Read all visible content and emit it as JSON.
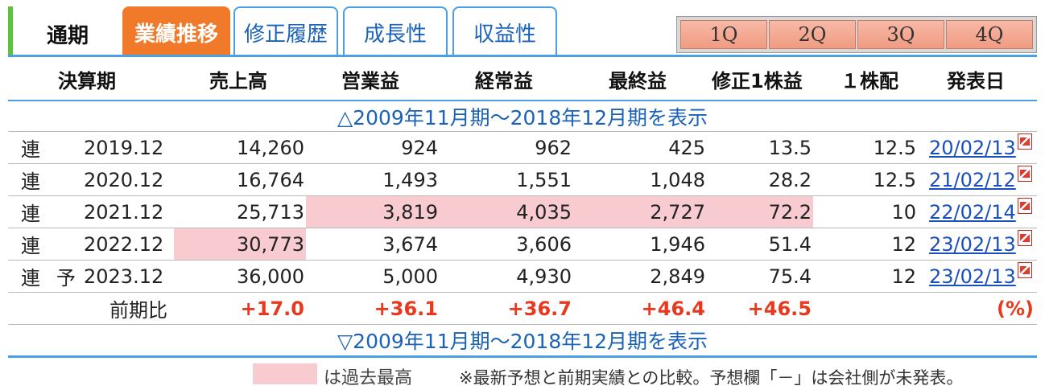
{
  "tabs": {
    "period": "通期",
    "items": [
      "業績推移",
      "修正履歴",
      "成長性",
      "収益性"
    ],
    "quarters": [
      "1Q",
      "2Q",
      "3Q",
      "4Q"
    ]
  },
  "table": {
    "headers": [
      "決算期",
      "売上高",
      "営業益",
      "経常益",
      "最終益",
      "修正1株益",
      "１株配",
      "発表日"
    ],
    "show_prev_top": "△2009年11月期〜2018年12月期を表示",
    "show_prev_bottom": "▽2009年11月期〜2018年12月期を表示",
    "rows": [
      {
        "type": "連",
        "flag": "",
        "period": "2019.12",
        "sales": "14,260",
        "op": "924",
        "ord": "962",
        "net": "425",
        "eps": "13.5",
        "div": "12.5",
        "date": "20/02/13"
      },
      {
        "type": "連",
        "flag": "",
        "period": "2020.12",
        "sales": "16,764",
        "op": "1,493",
        "ord": "1,551",
        "net": "1,048",
        "eps": "28.2",
        "div": "12.5",
        "date": "21/02/12"
      },
      {
        "type": "連",
        "flag": "",
        "period": "2021.12",
        "sales": "25,713",
        "op": "3,819",
        "ord": "4,035",
        "net": "2,727",
        "eps": "72.2",
        "div": "10",
        "date": "22/02/14"
      },
      {
        "type": "連",
        "flag": "",
        "period": "2022.12",
        "sales": "30,773",
        "op": "3,674",
        "ord": "3,606",
        "net": "1,946",
        "eps": "51.4",
        "div": "12",
        "date": "23/02/13"
      },
      {
        "type": "連",
        "flag": "予",
        "period": "2023.12",
        "sales": "36,000",
        "op": "5,000",
        "ord": "4,930",
        "net": "2,849",
        "eps": "75.4",
        "div": "12",
        "date": "23/02/13"
      }
    ],
    "ratio": {
      "label": "前期比",
      "sales": "+17.0",
      "op": "+36.1",
      "ord": "+36.7",
      "net": "+46.4",
      "eps": "+46.5",
      "unit": "(%)"
    }
  },
  "legend": {
    "color": "#f8cbd0",
    "text": "は過去最高",
    "note": "※最新予想と前期実績との比較。予想欄「－」は会社側が未発表。"
  }
}
